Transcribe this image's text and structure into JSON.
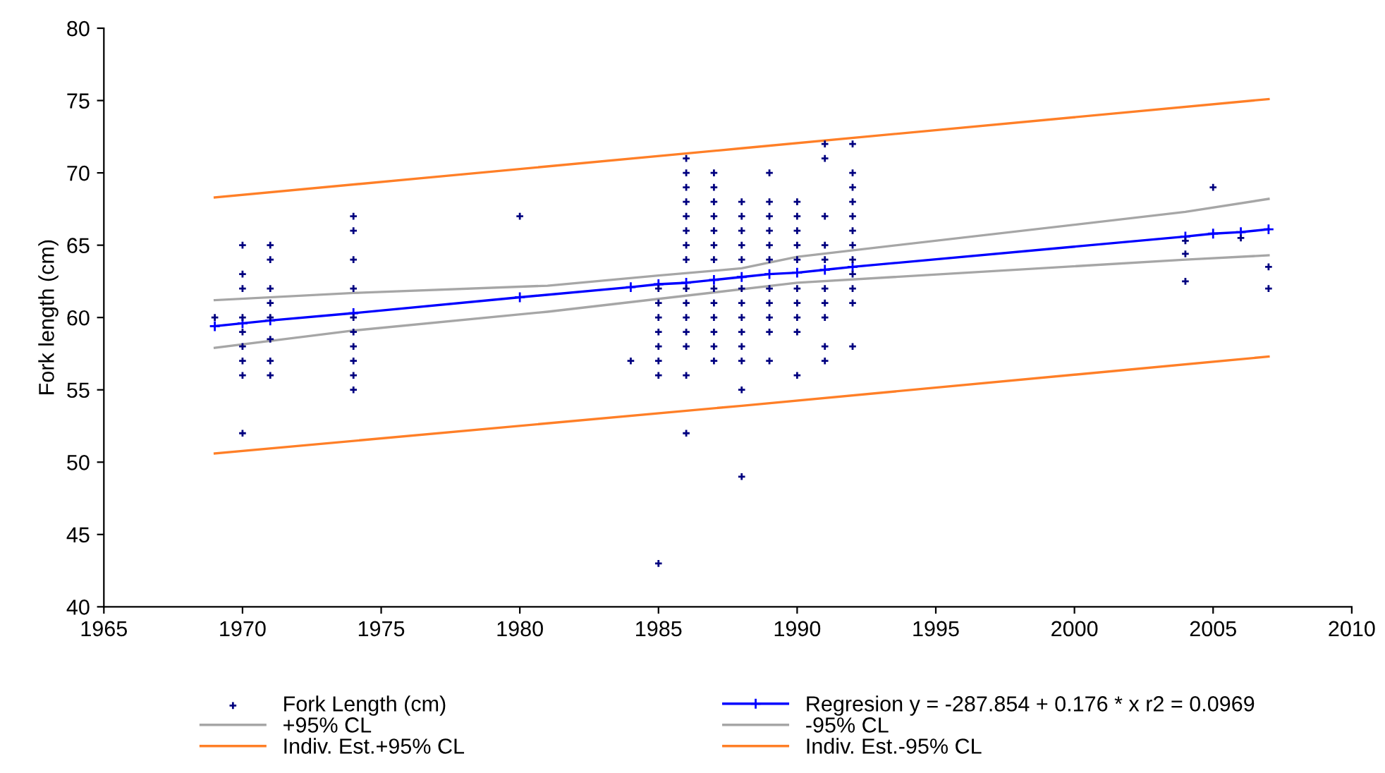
{
  "chart_data": {
    "type": "scatter",
    "ylabel": "Fork length (cm)",
    "xlim": [
      1965,
      2010
    ],
    "xticks": [
      1965,
      1970,
      1975,
      1980,
      1985,
      1990,
      1995,
      2000,
      2005,
      2010
    ],
    "ylim": [
      40,
      80
    ],
    "yticks": [
      40,
      45,
      50,
      55,
      60,
      65,
      70,
      75,
      80
    ],
    "grid": false,
    "legend": "bottom",
    "series": [
      {
        "name": "Fork Length (cm)",
        "marker": "cross",
        "color": "#000080",
        "x": [
          1969,
          1970,
          1970,
          1970,
          1970,
          1970,
          1970,
          1970,
          1970,
          1970,
          1971,
          1971,
          1971,
          1971,
          1971,
          1971,
          1971,
          1971,
          1974,
          1974,
          1974,
          1974,
          1974,
          1974,
          1974,
          1974,
          1974,
          1974,
          1980,
          1984,
          1985,
          1985,
          1985,
          1985,
          1985,
          1985,
          1985,
          1985,
          1986,
          1986,
          1986,
          1986,
          1986,
          1986,
          1986,
          1986,
          1986,
          1986,
          1986,
          1986,
          1986,
          1986,
          1986,
          1987,
          1987,
          1987,
          1987,
          1987,
          1987,
          1987,
          1987,
          1987,
          1987,
          1987,
          1987,
          1987,
          1988,
          1988,
          1988,
          1988,
          1988,
          1988,
          1988,
          1988,
          1988,
          1988,
          1988,
          1988,
          1988,
          1989,
          1989,
          1989,
          1989,
          1989,
          1989,
          1989,
          1989,
          1989,
          1989,
          1989,
          1990,
          1990,
          1990,
          1990,
          1990,
          1990,
          1990,
          1990,
          1990,
          1990,
          1991,
          1991,
          1991,
          1991,
          1991,
          1991,
          1991,
          1991,
          1991,
          1991,
          1992,
          1992,
          1992,
          1992,
          1992,
          1992,
          1992,
          1992,
          1992,
          1992,
          1992,
          1992,
          2004,
          2004,
          2004,
          2005,
          2006,
          2007,
          2007
        ],
        "values": [
          60,
          65,
          63,
          62,
          60,
          59,
          58,
          57,
          56,
          52,
          65,
          64,
          62,
          61,
          60,
          58.5,
          57,
          56,
          67,
          66,
          64,
          62,
          60,
          59,
          58,
          57,
          56,
          55,
          67,
          57,
          62,
          61,
          60,
          59,
          58,
          57,
          56,
          43,
          71,
          70,
          69,
          68,
          67,
          66,
          65,
          64,
          62,
          61,
          60,
          59,
          58,
          56,
          52,
          70,
          69,
          68,
          67,
          66,
          65,
          64,
          62,
          61,
          60,
          59,
          58,
          57,
          68,
          67,
          66,
          65,
          64,
          62,
          61,
          60,
          59,
          58,
          57,
          55,
          49,
          70,
          68,
          67,
          66,
          65,
          64,
          62,
          61,
          60,
          59,
          57,
          68,
          67,
          66,
          65,
          64,
          62,
          61,
          60,
          59,
          56,
          72,
          71,
          67,
          65,
          64,
          62,
          61,
          60,
          58,
          57,
          72,
          70,
          69,
          68,
          67,
          66,
          65,
          64,
          63,
          62,
          61,
          58,
          65.3,
          64.4,
          62.5,
          69,
          65.5,
          63.5,
          62
        ]
      },
      {
        "name": "+95% CL",
        "type": "line",
        "marker": "none",
        "color": "#a6a6a6",
        "x": [
          1969,
          1974,
          1981,
          1985,
          1988,
          1990,
          2004,
          2007
        ],
        "values": [
          61.2,
          61.7,
          62.2,
          62.9,
          63.4,
          64.2,
          67.3,
          68.2
        ]
      },
      {
        "name": "Indiv. Est.+95% CL",
        "type": "line",
        "marker": "none",
        "color": "#ff7f27",
        "x": [
          1969,
          1988,
          2007
        ],
        "values": [
          68.3,
          71.7,
          75.1
        ]
      },
      {
        "name": "Regresion y = -287.854 + 0.176 * x r2 = 0.0969",
        "type": "line",
        "marker": "cross",
        "color": "#0000ff",
        "x": [
          1969,
          1970,
          1971,
          1974,
          1980,
          1984,
          1985,
          1986,
          1987,
          1988,
          1989,
          1990,
          1991,
          1992,
          2004,
          2005,
          2006,
          2007
        ],
        "values": [
          59.4,
          59.6,
          59.8,
          60.3,
          61.4,
          62.1,
          62.3,
          62.4,
          62.6,
          62.8,
          63.0,
          63.1,
          63.3,
          63.5,
          65.6,
          65.8,
          65.9,
          66.1
        ]
      },
      {
        "name": "-95% CL",
        "type": "line",
        "marker": "none",
        "color": "#a6a6a6",
        "x": [
          1969,
          1974,
          1981,
          1990,
          2004,
          2007
        ],
        "values": [
          57.9,
          59.1,
          60.4,
          62.4,
          64.0,
          64.3
        ]
      },
      {
        "name": "Indiv. Est.-95% CL",
        "type": "line",
        "marker": "none",
        "color": "#ff7f27",
        "x": [
          1969,
          1988,
          2007
        ],
        "values": [
          50.6,
          53.9,
          57.3
        ]
      }
    ]
  }
}
